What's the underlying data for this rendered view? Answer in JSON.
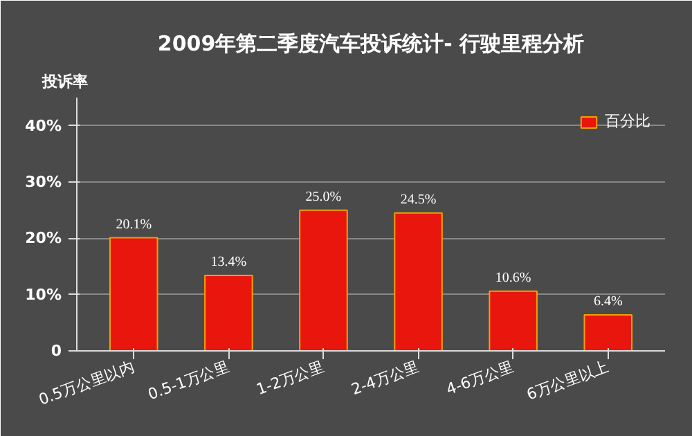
{
  "chart_data": {
    "type": "bar",
    "title": "2009年第二季度汽车投诉统计- 行驶里程分析",
    "ylabel": "投诉率",
    "categories": [
      "0.5万公里以内",
      "0.5-1万公里",
      "1-2万公里",
      "2-4万公里",
      "4-6万公里",
      "6万公里以上"
    ],
    "series": [
      {
        "name": "百分比",
        "color": "#e8160c",
        "values": [
          20.1,
          13.4,
          25.0,
          24.5,
          10.6,
          6.4
        ]
      }
    ],
    "value_labels": [
      "20.1%",
      "13.4%",
      "25.0%",
      "24.5%",
      "10.6%",
      "6.4%"
    ],
    "ylim": [
      0,
      45
    ],
    "yticks": [
      {
        "value": 0,
        "label": "0"
      },
      {
        "value": 10,
        "label": "10%"
      },
      {
        "value": 20,
        "label": "20%"
      },
      {
        "value": 30,
        "label": "30%"
      },
      {
        "value": 40,
        "label": "40%"
      }
    ],
    "grid": "y",
    "legend": "top right"
  }
}
